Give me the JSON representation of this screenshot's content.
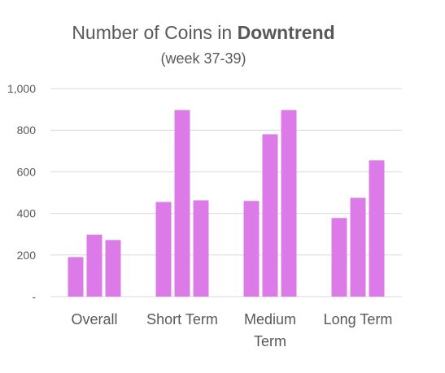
{
  "chart_data": {
    "type": "bar",
    "title": {
      "prefix": "Number of Coins in ",
      "emphasis": "Downtrend"
    },
    "subtitle": "(week 37-39)",
    "categories": [
      [
        "Overall"
      ],
      [
        "Short Term"
      ],
      [
        "Medium",
        "Term"
      ],
      [
        "Long Term"
      ]
    ],
    "series": [
      {
        "values": [
          190,
          455,
          460,
          378
        ]
      },
      {
        "values": [
          298,
          897,
          780,
          475
        ]
      },
      {
        "values": [
          272,
          463,
          897,
          655
        ]
      }
    ],
    "bar_color": "#dc7be8",
    "ylim": [
      0,
      1000
    ],
    "yticks": [
      {
        "value": 0,
        "label": "-"
      },
      {
        "value": 200,
        "label": "200"
      },
      {
        "value": 400,
        "label": "400"
      },
      {
        "value": 600,
        "label": "600"
      },
      {
        "value": 800,
        "label": "800"
      },
      {
        "value": 1000,
        "label": "1,000"
      }
    ],
    "grid": true,
    "legend": "none"
  }
}
